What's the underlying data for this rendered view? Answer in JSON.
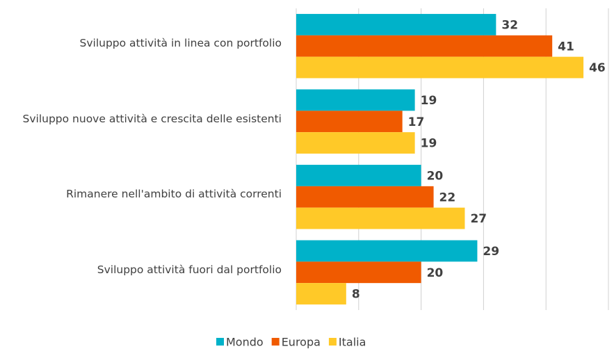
{
  "chart_data": {
    "type": "hbar",
    "categories": [
      "Sviluppo attività in linea con portfolio",
      "Sviluppo nuove attività e crescita delle esistenti",
      "Rimanere nell'ambito di attività correnti",
      "Sviluppo attività fuori dal portfolio"
    ],
    "series": [
      {
        "name": "Mondo",
        "color": "#00b2c9",
        "values": [
          32,
          19,
          20,
          29
        ]
      },
      {
        "name": "Europa",
        "color": "#f05a00",
        "values": [
          41,
          17,
          22,
          20
        ]
      },
      {
        "name": "Italia",
        "color": "#ffc928",
        "values": [
          46,
          19,
          27,
          8
        ]
      }
    ],
    "xlim": [
      0,
      50
    ],
    "xticks": [
      0,
      10,
      20,
      30,
      40,
      50
    ],
    "grid": true,
    "legend": "bottom"
  }
}
